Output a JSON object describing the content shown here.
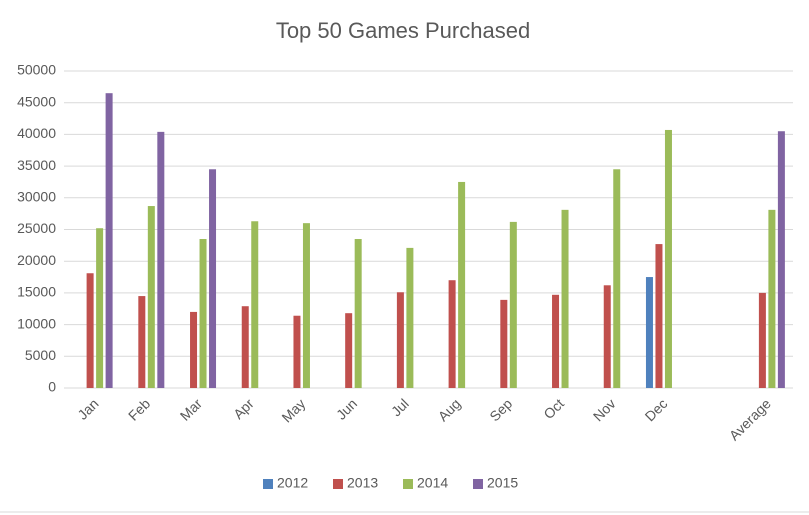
{
  "chart_data": {
    "type": "bar",
    "title": "Top 50 Games Purchased",
    "categories": [
      "Jan",
      "Feb",
      "Mar",
      "Apr",
      "May",
      "Jun",
      "Jul",
      "Aug",
      "Sep",
      "Oct",
      "Nov",
      "Dec",
      null,
      "Average"
    ],
    "series": [
      {
        "name": "2012",
        "color": "#4f81bd",
        "values": [
          null,
          null,
          null,
          null,
          null,
          null,
          null,
          null,
          null,
          null,
          null,
          17500,
          null,
          null
        ]
      },
      {
        "name": "2013",
        "color": "#c0504d",
        "values": [
          18100,
          14500,
          12000,
          12900,
          11400,
          11800,
          15100,
          17000,
          13900,
          14700,
          16200,
          22700,
          null,
          15000
        ]
      },
      {
        "name": "2014",
        "color": "#9bbb59",
        "values": [
          25200,
          28700,
          23500,
          26300,
          26000,
          23500,
          22100,
          32500,
          26200,
          28100,
          34500,
          40700,
          null,
          28100
        ]
      },
      {
        "name": "2015",
        "color": "#8064a2",
        "values": [
          46500,
          40400,
          34500,
          null,
          null,
          null,
          null,
          null,
          null,
          null,
          null,
          null,
          null,
          40500
        ]
      }
    ],
    "ylim": [
      0,
      50000
    ],
    "yticks": [
      0,
      5000,
      10000,
      15000,
      20000,
      25000,
      30000,
      35000,
      40000,
      45000,
      50000
    ],
    "grid": true,
    "legend": "bottom"
  }
}
